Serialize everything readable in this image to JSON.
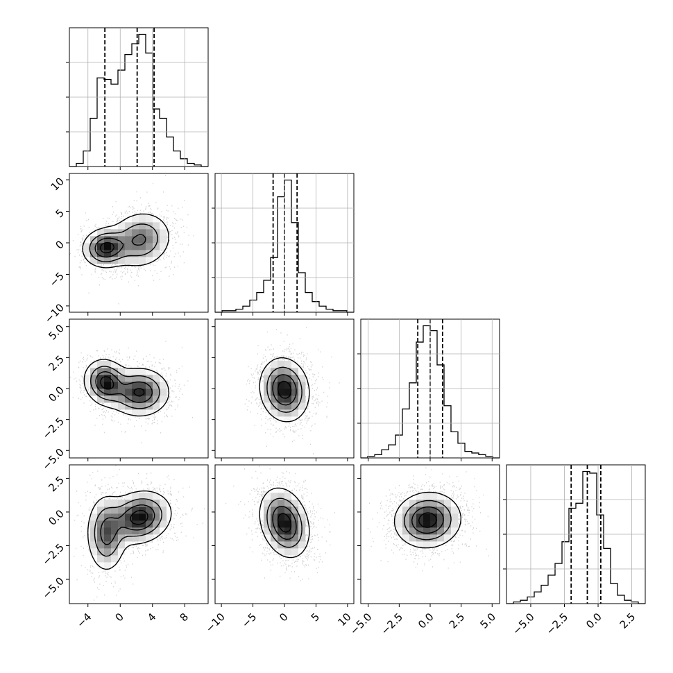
{
  "chart_data": {
    "type": "corner",
    "colors": {
      "points": "#000000",
      "density": "#000000",
      "lines": "#000000",
      "grid": "#b0b0b0"
    },
    "grid": true,
    "quantile_lines": "dashed",
    "parameters": [
      {
        "ticks": [
          -4,
          0,
          4,
          8
        ],
        "tick_labels": [
          "−4",
          "0",
          "4",
          "8"
        ],
        "range": [
          -6.3,
          10.9
        ],
        "quantiles": [
          -1.9,
          2.1,
          4.2
        ],
        "histogram": {
          "edges": [
            -6.3,
            -5.44,
            -4.58,
            -3.72,
            -2.86,
            -2.0,
            -1.14,
            -0.28,
            0.58,
            1.44,
            2.3,
            3.16,
            4.02,
            4.88,
            5.74,
            6.6,
            7.46,
            8.32,
            9.18,
            10.04,
            10.9
          ],
          "counts": [
            0,
            0.02,
            0.1,
            0.31,
            0.57,
            0.56,
            0.53,
            0.62,
            0.72,
            0.79,
            0.85,
            0.73,
            0.37,
            0.31,
            0.19,
            0.1,
            0.05,
            0.02,
            0.01,
            0
          ]
        }
      },
      {
        "ticks": [
          -10,
          -5,
          0,
          5,
          10
        ],
        "tick_labels": [
          "−10",
          "−5",
          "0",
          "5",
          "10"
        ],
        "range": [
          -11,
          11
        ],
        "quantiles": [
          -1.8,
          0,
          2
        ],
        "histogram": {
          "edges": [
            -11,
            -9.9,
            -8.8,
            -7.7,
            -6.6,
            -5.5,
            -4.4,
            -3.3,
            -2.2,
            -1.1,
            0,
            1.1,
            2.2,
            3.3,
            4.4,
            5.5,
            6.6,
            7.7,
            8.8,
            9.9,
            11
          ],
          "counts": [
            0,
            0.01,
            0.01,
            0.02,
            0.04,
            0.08,
            0.13,
            0.21,
            0.36,
            0.76,
            0.87,
            0.59,
            0.26,
            0.13,
            0.07,
            0.04,
            0.02,
            0.01,
            0.01,
            0
          ]
        }
      },
      {
        "ticks": [
          -5,
          -2.5,
          0,
          2.5,
          5
        ],
        "tick_labels": [
          "−5.0",
          "−2.5",
          "0.0",
          "2.5",
          "5.0"
        ],
        "range": [
          -5.6,
          5.6
        ],
        "quantiles": [
          -1,
          0,
          1
        ],
        "histogram": {
          "edges": [
            -5.6,
            -5.04,
            -4.48,
            -3.92,
            -3.36,
            -2.8,
            -2.24,
            -1.68,
            -1.12,
            -0.56,
            0,
            0.56,
            1.12,
            1.68,
            2.24,
            2.8,
            3.36,
            3.92,
            4.48,
            5.04,
            5.6
          ],
          "counts": [
            0,
            0.01,
            0.02,
            0.05,
            0.08,
            0.14,
            0.3,
            0.46,
            0.71,
            0.81,
            0.78,
            0.57,
            0.32,
            0.16,
            0.09,
            0.04,
            0.03,
            0.02,
            0.01,
            0
          ]
        }
      },
      {
        "ticks": [
          -5,
          -2.5,
          0,
          2.5
        ],
        "tick_labels": [
          "−5.0",
          "−2.5",
          "0.0",
          "2.5"
        ],
        "range": [
          -6.8,
          3.5
        ],
        "quantiles": [
          -2,
          -0.8,
          0.2
        ],
        "histogram": {
          "edges": [
            -6.8,
            -6.285,
            -5.77,
            -5.255,
            -4.74,
            -4.225,
            -3.71,
            -3.195,
            -2.68,
            -2.165,
            -1.65,
            -1.135,
            -0.62,
            -0.105,
            0.41,
            0.925,
            1.44,
            1.955,
            2.47,
            2.985,
            3.5
          ],
          "counts": [
            0,
            0.01,
            0.02,
            0.04,
            0.07,
            0.11,
            0.17,
            0.24,
            0.37,
            0.57,
            0.6,
            0.79,
            0.78,
            0.53,
            0.33,
            0.12,
            0.05,
            0.02,
            0.01,
            0
          ]
        }
      }
    ],
    "pairs": [
      {
        "x": 0,
        "y": 1,
        "blobs": [
          {
            "cx": 2.5,
            "cy": 0.5,
            "sx": 1.9,
            "sy": 2.2,
            "r": 0.1,
            "w": 0.58
          },
          {
            "cx": -1.8,
            "cy": -0.8,
            "sx": 1.4,
            "sy": 1.5,
            "r": 0.05,
            "w": 0.42
          }
        ]
      },
      {
        "x": 0,
        "y": 2,
        "blobs": [
          {
            "cx": 2.4,
            "cy": -0.3,
            "sx": 1.8,
            "sy": 0.95,
            "r": 0.0,
            "w": 0.58
          },
          {
            "cx": -1.8,
            "cy": 0.5,
            "sx": 1.3,
            "sy": 0.9,
            "r": -0.1,
            "w": 0.42
          }
        ]
      },
      {
        "x": 1,
        "y": 2,
        "blobs": [
          {
            "cx": 0,
            "cy": -0.1,
            "sx": 1.9,
            "sy": 1.25,
            "r": -0.1,
            "w": 1
          }
        ]
      },
      {
        "x": 0,
        "y": 3,
        "blobs": [
          {
            "cx": 2.4,
            "cy": -0.4,
            "sx": 1.9,
            "sy": 0.95,
            "r": 0.15,
            "w": 0.6
          },
          {
            "cx": -1.7,
            "cy": -1.6,
            "sx": 1.2,
            "sy": 1.4,
            "r": 0.0,
            "w": 0.4
          }
        ]
      },
      {
        "x": 1,
        "y": 3,
        "blobs": [
          {
            "cx": 0,
            "cy": -0.8,
            "sx": 1.9,
            "sy": 1.25,
            "r": -0.25,
            "w": 1
          }
        ]
      },
      {
        "x": 2,
        "y": 3,
        "blobs": [
          {
            "cx": -0.2,
            "cy": -0.6,
            "sx": 1.3,
            "sy": 1.0,
            "r": 0.05,
            "w": 1
          }
        ]
      }
    ]
  }
}
